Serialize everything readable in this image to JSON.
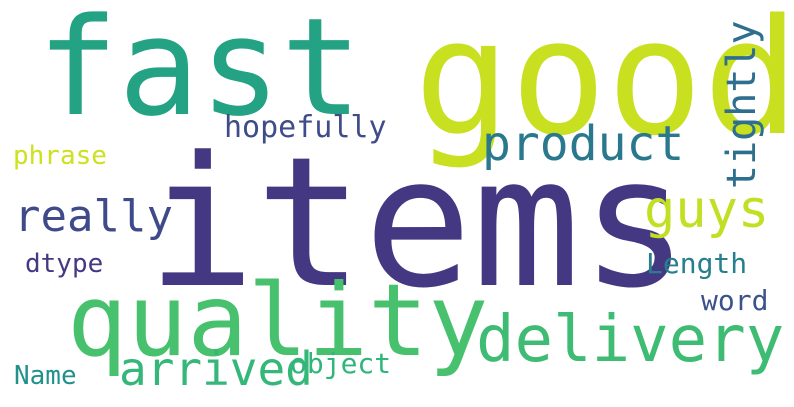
{
  "words": [
    {
      "id": "items",
      "text": "items",
      "color": "#453882"
    },
    {
      "id": "good",
      "text": "good",
      "color": "#c8e020"
    },
    {
      "id": "fast",
      "text": "fast",
      "color": "#23a284"
    },
    {
      "id": "quality",
      "text": "quality",
      "color": "#48c16e"
    },
    {
      "id": "delivery",
      "text": "delivery",
      "color": "#3fbc73"
    },
    {
      "id": "product",
      "text": "product",
      "color": "#2a788e"
    },
    {
      "id": "guys",
      "text": "guys",
      "color": "#c2df23"
    },
    {
      "id": "really",
      "text": "really",
      "color": "#3e4a89"
    },
    {
      "id": "arrived",
      "text": "arrived",
      "color": "#35b779"
    },
    {
      "id": "tightly",
      "text": "tightly",
      "color": "#2e6e8e"
    },
    {
      "id": "hopefully",
      "text": "hopefully",
      "color": "#3e4c8a"
    },
    {
      "id": "phrase",
      "text": "phrase",
      "color": "#cde11d"
    },
    {
      "id": "dtype",
      "text": "dtype",
      "color": "#443983"
    },
    {
      "id": "Length",
      "text": "Length",
      "color": "#277f8e"
    },
    {
      "id": "word",
      "text": "word",
      "color": "#3b528b"
    },
    {
      "id": "Name",
      "text": "Name",
      "color": "#21918c"
    },
    {
      "id": "object",
      "text": "object",
      "color": "#31b57b"
    }
  ]
}
